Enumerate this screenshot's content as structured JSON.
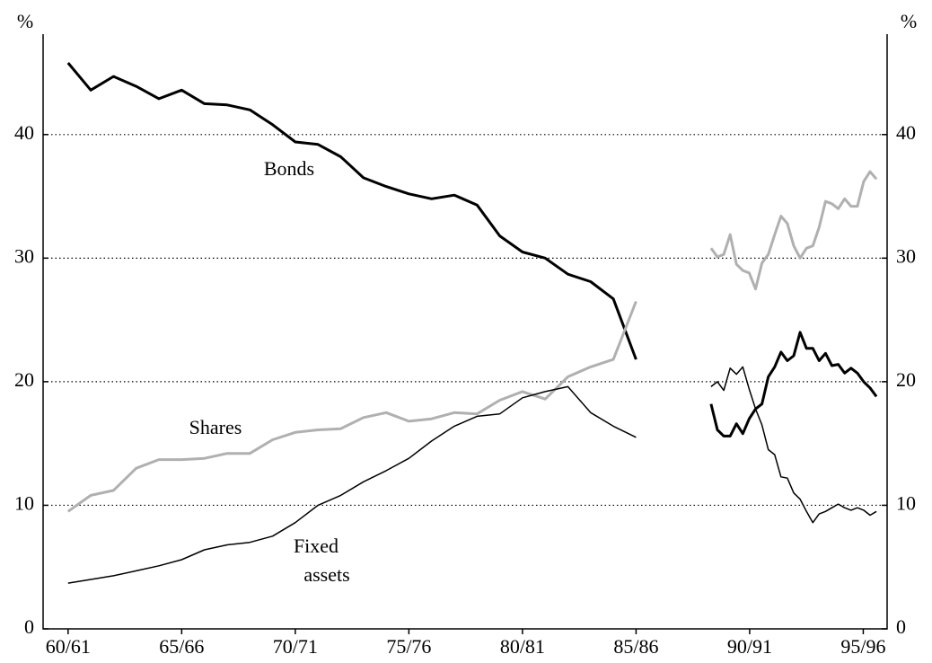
{
  "chart_data": {
    "type": "line",
    "y_label": "%",
    "x": [
      1960,
      1961,
      1962,
      1963,
      1964,
      1965,
      1966,
      1967,
      1968,
      1969,
      1970,
      1971,
      1972,
      1973,
      1974,
      1975,
      1976,
      1977,
      1978,
      1979,
      1980,
      1981,
      1982,
      1983,
      1984,
      1985,
      1987,
      1988.3,
      1988.58,
      1988.86,
      1989.14,
      1989.42,
      1989.7,
      1989.98,
      1990.26,
      1990.54,
      1990.82,
      1991.1,
      1991.38,
      1991.66,
      1991.94,
      1992.22,
      1992.5,
      1992.78,
      1993.06,
      1993.34,
      1993.62,
      1993.9,
      1994.18,
      1994.46,
      1994.74,
      1995.02,
      1995.3,
      1995.58
    ],
    "xlim": [
      1958.9,
      1996.05
    ],
    "xticks": [
      {
        "value": 1960,
        "label": "60/61"
      },
      {
        "value": 1965,
        "label": "65/66"
      },
      {
        "value": 1970,
        "label": "70/71"
      },
      {
        "value": 1975,
        "label": "75/76"
      },
      {
        "value": 1980,
        "label": "80/81"
      },
      {
        "value": 1985,
        "label": "85/86"
      },
      {
        "value": 1990,
        "label": "90/91"
      },
      {
        "value": 1995,
        "label": "95/96"
      }
    ],
    "ylim": [
      0,
      47.4
    ],
    "yticks": [
      0,
      10,
      20,
      30,
      40
    ],
    "grid": true,
    "series": [
      {
        "name": "Bonds",
        "color": "#000000",
        "values": [
          45.8,
          43.6,
          44.7,
          43.9,
          42.9,
          43.6,
          42.5,
          42.4,
          42.0,
          40.8,
          39.4,
          39.2,
          38.2,
          36.5,
          35.8,
          35.2,
          34.8,
          35.1,
          34.3,
          31.8,
          30.5,
          30.0,
          28.7,
          28.1,
          26.7,
          21.8,
          null,
          18.2,
          16.1,
          15.6,
          15.6,
          16.6,
          15.8,
          17.0,
          17.8,
          18.2,
          20.4,
          21.2,
          22.4,
          21.7,
          22.1,
          24.0,
          22.7,
          22.7,
          21.7,
          22.3,
          21.3,
          21.4,
          20.7,
          21.1,
          20.7,
          20.0,
          19.5,
          18.8
        ]
      },
      {
        "name": "Shares",
        "color": "#b0b0b0",
        "values": [
          9.5,
          10.8,
          11.2,
          13.0,
          13.7,
          13.7,
          13.8,
          14.2,
          14.2,
          15.3,
          15.9,
          16.1,
          16.2,
          17.1,
          17.5,
          16.8,
          17.0,
          17.5,
          17.4,
          18.5,
          19.2,
          18.6,
          20.4,
          21.2,
          21.8,
          26.5,
          null,
          30.8,
          30.1,
          30.3,
          31.9,
          29.5,
          29.0,
          28.8,
          27.5,
          29.6,
          30.3,
          31.9,
          33.4,
          32.8,
          31.0,
          30.0,
          30.8,
          31.0,
          32.5,
          34.6,
          34.4,
          34.0,
          34.8,
          34.2,
          34.2,
          36.2,
          37.0,
          36.4
        ]
      },
      {
        "name": "Fixed assets",
        "color": "#000000",
        "values": [
          3.7,
          4.0,
          4.3,
          4.7,
          5.1,
          5.6,
          6.4,
          6.8,
          7.0,
          7.5,
          8.6,
          10.0,
          10.8,
          11.9,
          12.8,
          13.8,
          15.2,
          16.4,
          17.2,
          17.4,
          18.7,
          19.2,
          19.6,
          17.5,
          16.4,
          15.5,
          null,
          19.6,
          20.0,
          19.3,
          21.1,
          20.6,
          21.2,
          19.4,
          17.8,
          16.5,
          14.5,
          14.1,
          12.3,
          12.2,
          11.0,
          10.5,
          9.5,
          8.6,
          9.3,
          9.5,
          9.8,
          10.1,
          9.8,
          9.6,
          9.8,
          9.6,
          9.2,
          9.5
        ]
      }
    ],
    "annotations": [
      "Bonds",
      "Shares",
      "Fixed",
      "assets"
    ]
  }
}
